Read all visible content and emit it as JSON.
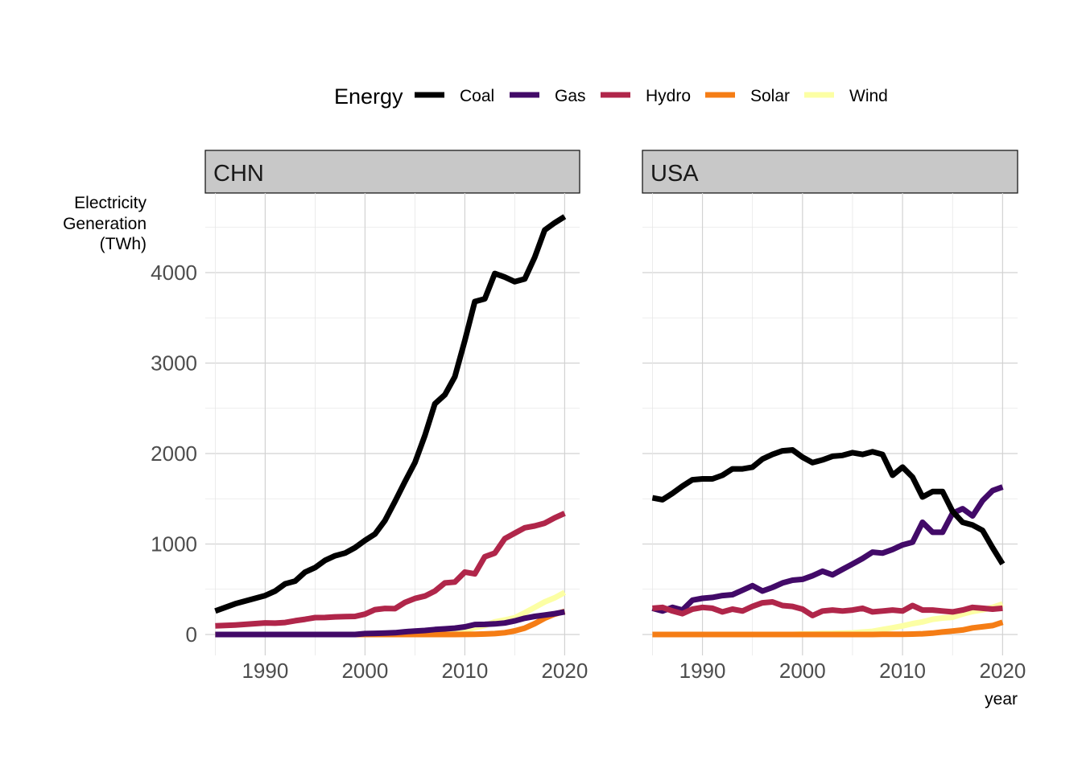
{
  "chart_data": {
    "type": "line",
    "xlabel": "year",
    "ylabel": [
      "Electricity",
      "Generation",
      "(TWh)"
    ],
    "xlim": [
      1984,
      2021.5
    ],
    "ylim": [
      -250,
      4900
    ],
    "x_ticks": [
      1990,
      2000,
      2010,
      2020
    ],
    "y_ticks": [
      0,
      1000,
      2000,
      3000,
      4000
    ],
    "grid": true,
    "legend": {
      "title": "Energy",
      "position": "top",
      "entries": [
        "Coal",
        "Gas",
        "Hydro",
        "Solar",
        "Wind"
      ]
    },
    "colors": {
      "Coal": "#000000",
      "Gas": "#420a68",
      "Hydro": "#b0264a",
      "Solar": "#f57d15",
      "Wind": "#fcffa4"
    },
    "x": [
      1985,
      1986,
      1987,
      1988,
      1989,
      1990,
      1991,
      1992,
      1993,
      1994,
      1995,
      1996,
      1997,
      1998,
      1999,
      2000,
      2001,
      2002,
      2003,
      2004,
      2005,
      2006,
      2007,
      2008,
      2009,
      2010,
      2011,
      2012,
      2013,
      2014,
      2015,
      2016,
      2017,
      2018,
      2019,
      2020
    ],
    "panels": [
      {
        "name": "CHN",
        "series": [
          {
            "name": "Coal",
            "values": [
              260,
              300,
              340,
              370,
              400,
              430,
              480,
              560,
              590,
              690,
              740,
              820,
              870,
              900,
              960,
              1040,
              1110,
              1260,
              1470,
              1690,
              1900,
              2200,
              2550,
              2650,
              2850,
              3250,
              3680,
              3710,
              3990,
              3950,
              3900,
              3930,
              4170,
              4470,
              4550,
              4620
            ]
          },
          {
            "name": "Hydro",
            "values": [
              95,
              100,
              105,
              112,
              120,
              128,
              125,
              132,
              152,
              168,
              187,
              188,
              195,
              198,
              200,
              225,
              275,
              288,
              285,
              355,
              398,
              425,
              480,
              570,
              580,
              690,
              670,
              860,
              900,
              1060,
              1120,
              1180,
              1200,
              1230,
              1290,
              1340
            ]
          },
          {
            "name": "Gas",
            "values": [
              0,
              0,
              0,
              0,
              0,
              0,
              0,
              0,
              0,
              0,
              0,
              0,
              0,
              0,
              0,
              10,
              12,
              16,
              20,
              30,
              38,
              44,
              55,
              62,
              70,
              84,
              110,
              112,
              117,
              127,
              150,
              180,
              200,
              215,
              230,
              250
            ]
          },
          {
            "name": "Wind",
            "values": [
              0,
              0,
              0,
              0,
              0,
              0,
              0,
              0,
              0,
              0,
              0,
              0,
              0,
              0,
              0,
              0,
              0,
              0,
              0,
              0,
              0,
              5,
              10,
              15,
              30,
              50,
              75,
              100,
              140,
              160,
              185,
              240,
              300,
              360,
              405,
              465
            ]
          },
          {
            "name": "Solar",
            "values": [
              0,
              0,
              0,
              0,
              0,
              0,
              0,
              0,
              0,
              0,
              0,
              0,
              0,
              0,
              0,
              0,
              0,
              0,
              0,
              0,
              0,
              0,
              0,
              0,
              0,
              1,
              3,
              5,
              10,
              20,
              40,
              70,
              120,
              180,
              225,
              255
            ]
          }
        ]
      },
      {
        "name": "USA",
        "series": [
          {
            "name": "Coal",
            "values": [
              1510,
              1490,
              1560,
              1640,
              1710,
              1720,
              1720,
              1760,
              1830,
              1830,
              1850,
              1940,
              1990,
              2030,
              2040,
              1960,
              1900,
              1930,
              1970,
              1980,
              2010,
              1990,
              2020,
              1990,
              1760,
              1850,
              1740,
              1520,
              1580,
              1580,
              1360,
              1240,
              1210,
              1150,
              960,
              780
            ]
          },
          {
            "name": "Gas",
            "values": [
              290,
              260,
              300,
              270,
              380,
              400,
              410,
              430,
              440,
              490,
              540,
              480,
              520,
              570,
              600,
              610,
              650,
              700,
              660,
              720,
              780,
              840,
              910,
              900,
              940,
              990,
              1020,
              1240,
              1130,
              1130,
              1340,
              1390,
              1310,
              1480,
              1590,
              1630
            ]
          },
          {
            "name": "Hydro",
            "values": [
              290,
              300,
              260,
              230,
              280,
              300,
              290,
              250,
              280,
              260,
              310,
              350,
              360,
              320,
              310,
              280,
              210,
              260,
              270,
              260,
              270,
              290,
              250,
              260,
              270,
              260,
              320,
              270,
              270,
              260,
              250,
              270,
              300,
              290,
              280,
              290
            ]
          },
          {
            "name": "Wind",
            "values": [
              0,
              0,
              0,
              0,
              0,
              0,
              0,
              0,
              0,
              0,
              0,
              0,
              0,
              0,
              0,
              5,
              7,
              10,
              11,
              14,
              18,
              27,
              35,
              55,
              74,
              95,
              120,
              140,
              168,
              182,
              190,
              227,
              254,
              273,
              300,
              338
            ]
          },
          {
            "name": "Solar",
            "values": [
              0,
              0,
              0,
              0,
              0,
              0,
              0,
              0,
              0,
              0,
              0,
              0,
              0,
              0,
              0,
              0,
              0,
              0,
              0,
              0,
              0,
              0,
              0,
              2,
              2,
              3,
              4,
              8,
              15,
              28,
              38,
              50,
              73,
              85,
              99,
              135
            ]
          }
        ]
      }
    ]
  }
}
